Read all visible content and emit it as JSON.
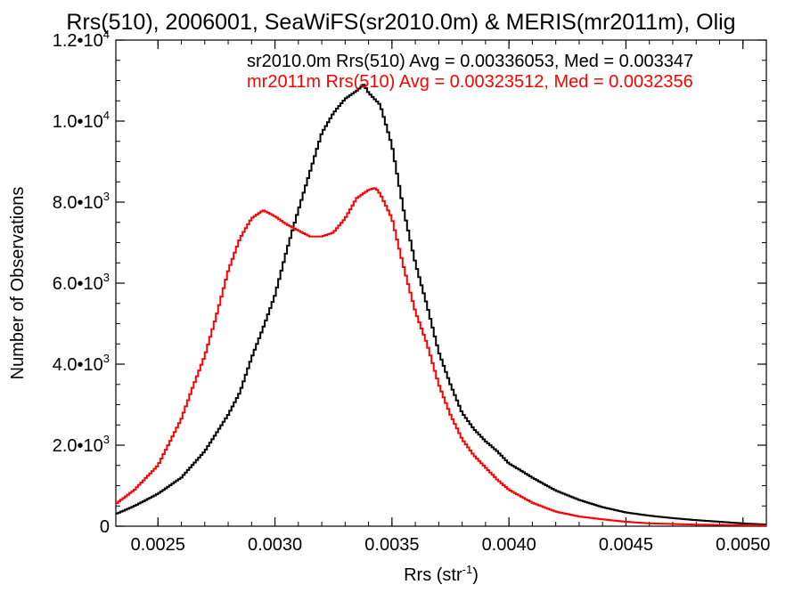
{
  "chart_data": {
    "type": "line",
    "title": "Rrs(510), 2006001, SeaWiFS(sr2010.0m) & MERIS(mr2011m), Olig",
    "xlabel": "Rrs (str",
    "xlabel_sup": "-1",
    "xlabel_close": ")",
    "ylabel": "Number of Observations",
    "xlim": [
      0.00232,
      0.0051
    ],
    "ylim": [
      0,
      12000
    ],
    "x_ticks": [
      {
        "value": 0.0025,
        "label": "0.0025"
      },
      {
        "value": 0.003,
        "label": "0.0030"
      },
      {
        "value": 0.0035,
        "label": "0.0035"
      },
      {
        "value": 0.004,
        "label": "0.0040"
      },
      {
        "value": 0.0045,
        "label": "0.0045"
      },
      {
        "value": 0.005,
        "label": "0.0050"
      }
    ],
    "y_ticks": [
      {
        "value": 0,
        "label": "0",
        "exp": ""
      },
      {
        "value": 2000,
        "label": "2.0•10",
        "exp": "3"
      },
      {
        "value": 4000,
        "label": "4.0•10",
        "exp": "3"
      },
      {
        "value": 6000,
        "label": "6.0•10",
        "exp": "3"
      },
      {
        "value": 8000,
        "label": "8.0•10",
        "exp": "3"
      },
      {
        "value": 10000,
        "label": "1.0•10",
        "exp": "4"
      },
      {
        "value": 12000,
        "label": "1.2•10",
        "exp": "4"
      }
    ],
    "legend_position": "top-right",
    "series": [
      {
        "name": "sr2010.0m Rrs(510) Avg = 0.00336053, Med = 0.003347",
        "color": "#000000",
        "x": [
          0.00232,
          0.0024,
          0.0025,
          0.0026,
          0.0027,
          0.0028,
          0.00285,
          0.0029,
          0.00295,
          0.003,
          0.00305,
          0.0031,
          0.00315,
          0.0032,
          0.00325,
          0.0033,
          0.00335,
          0.00338,
          0.0034,
          0.00345,
          0.0035,
          0.00355,
          0.0036,
          0.00365,
          0.0037,
          0.00375,
          0.0038,
          0.00385,
          0.0039,
          0.00395,
          0.004,
          0.00405,
          0.0041,
          0.0042,
          0.0043,
          0.0044,
          0.0045,
          0.0046,
          0.0047,
          0.0048,
          0.0049,
          0.005,
          0.0051
        ],
        "y": [
          300,
          500,
          800,
          1200,
          1850,
          2750,
          3300,
          4150,
          4900,
          5700,
          6800,
          7800,
          8750,
          9700,
          10200,
          10550,
          10750,
          10900,
          10700,
          10400,
          9400,
          7800,
          6500,
          5450,
          4300,
          3500,
          2800,
          2400,
          2100,
          1850,
          1550,
          1380,
          1200,
          880,
          650,
          470,
          340,
          260,
          200,
          150,
          110,
          70,
          40
        ]
      },
      {
        "name": "mr2011m Rrs(510) Avg = 0.00323512, Med = 0.0032356",
        "color": "#ff0000",
        "x": [
          0.00232,
          0.0024,
          0.0025,
          0.0026,
          0.00265,
          0.0027,
          0.00275,
          0.0028,
          0.00285,
          0.0029,
          0.00295,
          0.003,
          0.00305,
          0.0031,
          0.00315,
          0.0032,
          0.00325,
          0.0033,
          0.00335,
          0.0034,
          0.00343,
          0.00345,
          0.0035,
          0.00355,
          0.0036,
          0.00365,
          0.0037,
          0.00375,
          0.0038,
          0.00385,
          0.0039,
          0.00395,
          0.004,
          0.0041,
          0.0042,
          0.0043,
          0.0044,
          0.0045,
          0.0046,
          0.0048,
          0.005,
          0.0051
        ],
        "y": [
          550,
          900,
          1500,
          2650,
          3450,
          4200,
          5200,
          6300,
          7100,
          7600,
          7800,
          7650,
          7450,
          7300,
          7150,
          7150,
          7250,
          7600,
          8100,
          8300,
          8350,
          8200,
          7600,
          6400,
          5300,
          4500,
          3500,
          2750,
          2150,
          1750,
          1450,
          1150,
          900,
          580,
          360,
          240,
          170,
          110,
          70,
          40,
          25,
          15
        ]
      }
    ]
  }
}
